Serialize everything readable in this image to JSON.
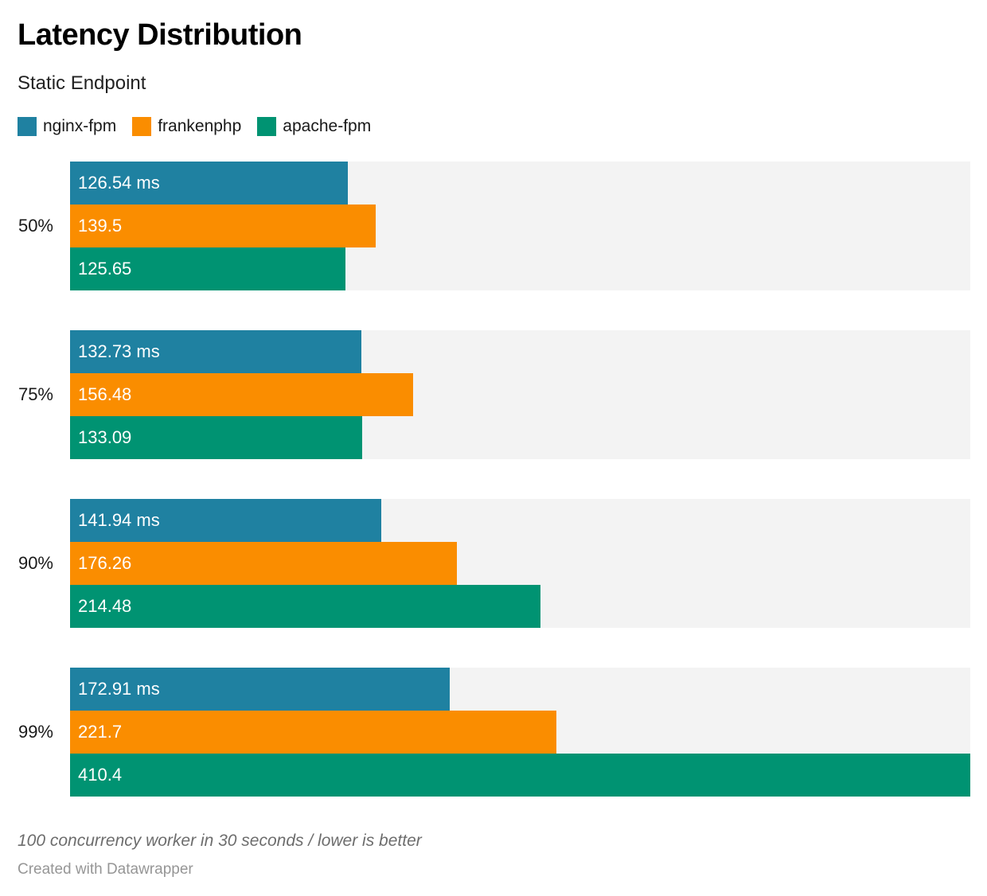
{
  "header": {
    "title": "Latency Distribution",
    "subtitle": "Static Endpoint"
  },
  "chart_data": {
    "type": "bar",
    "orientation": "horizontal",
    "categories": [
      "50%",
      "75%",
      "90%",
      "99%"
    ],
    "series": [
      {
        "name": "nginx-fpm",
        "color": "#1f81a1",
        "values": [
          126.54,
          132.73,
          141.94,
          172.91
        ],
        "labels": [
          "126.54 ms",
          "132.73 ms",
          "141.94 ms",
          "172.91 ms"
        ]
      },
      {
        "name": "frankenphp",
        "color": "#fa8d00",
        "values": [
          139.5,
          156.48,
          176.26,
          221.7
        ],
        "labels": [
          "139.5",
          "156.48",
          "176.26",
          "221.7"
        ]
      },
      {
        "name": "apache-fpm",
        "color": "#009372",
        "values": [
          125.65,
          133.09,
          214.48,
          410.4
        ],
        "labels": [
          "125.65",
          "133.09",
          "214.48",
          "410.4"
        ]
      }
    ],
    "unit": "ms",
    "xlim": [
      0,
      410.4
    ],
    "grid": false,
    "legend_position": "top",
    "track_color": "#f3f3f3",
    "value_labels_inside": true
  },
  "footer": {
    "note": "100 concurrency worker in 30 seconds / lower is better",
    "credit": "Created with Datawrapper"
  }
}
